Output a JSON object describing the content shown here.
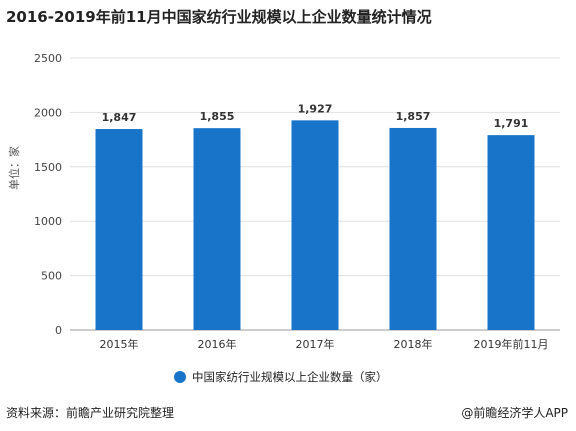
{
  "title": "2016-2019年前11月中国家纺行业规模以上企业数量统计情况",
  "source": "资料来源：前瞻产业研究院整理",
  "credit": "@前瞻经济学人APP",
  "colors": {
    "bar": "#1874c8",
    "grid": "#e0e0e0",
    "axis": "#999999"
  },
  "chart_data": {
    "type": "bar",
    "title": "2016-2019年前11月中国家纺行业规模以上企业数量统计情况",
    "categories": [
      "2015年",
      "2016年",
      "2017年",
      "2018年",
      "2019年前11月"
    ],
    "series": [
      {
        "name": "中国家纺行业规模以上企业数量（家）",
        "values": [
          1847,
          1855,
          1927,
          1857,
          1791
        ]
      }
    ],
    "data_labels": [
      "1,847",
      "1,855",
      "1,927",
      "1,857",
      "1,791"
    ],
    "ylabel": "单位：家",
    "yticks": [
      "0",
      "500",
      "1000",
      "1500",
      "2000",
      "2500"
    ],
    "ylim": [
      0,
      2500
    ],
    "grid": true,
    "legend_position": "bottom"
  }
}
